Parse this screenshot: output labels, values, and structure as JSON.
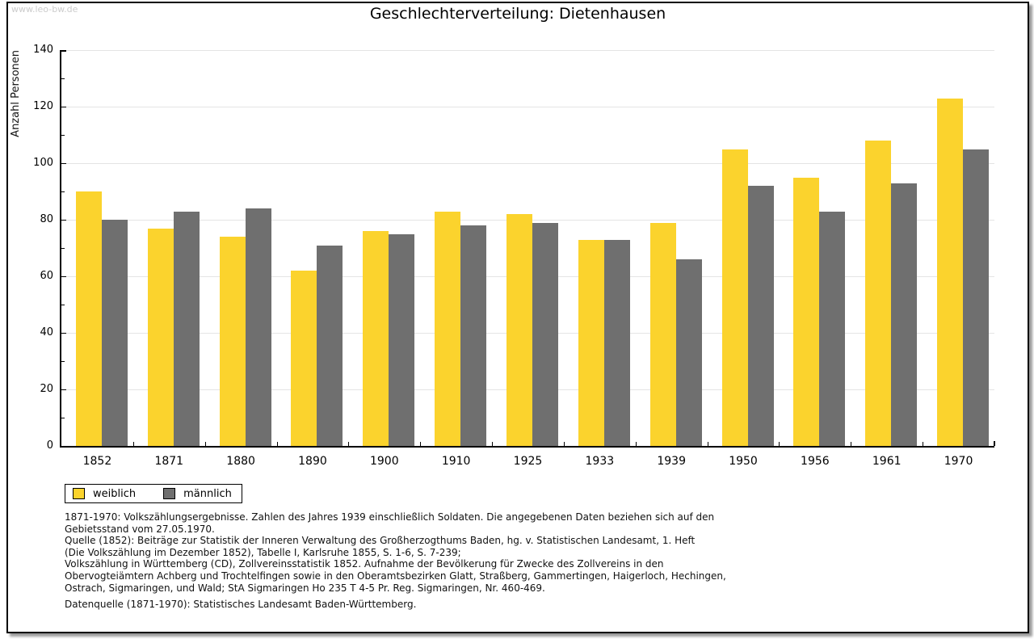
{
  "watermark": "www.leo-bw.de",
  "title": "Geschlechterverteilung: Dietenhausen",
  "chart_data": {
    "type": "bar",
    "title": "Geschlechterverteilung: Dietenhausen",
    "xlabel": "",
    "ylabel": "Anzahl Personen",
    "categories": [
      "1852",
      "1871",
      "1880",
      "1890",
      "1900",
      "1910",
      "1925",
      "1933",
      "1939",
      "1950",
      "1956",
      "1961",
      "1970"
    ],
    "series": [
      {
        "name": "weiblich",
        "color": "#FBD32D",
        "values": [
          90,
          77,
          74,
          62,
          76,
          83,
          82,
          73,
          79,
          105,
          95,
          108,
          123
        ]
      },
      {
        "name": "männlich",
        "color": "#6F6F6F",
        "values": [
          80,
          83,
          84,
          71,
          75,
          78,
          79,
          73,
          66,
          92,
          83,
          93,
          105
        ]
      }
    ],
    "ylim": [
      0,
      140
    ],
    "ytick_step": 20,
    "yminortick_step": 10,
    "grid": true,
    "gridline_color": "#e4e4e4",
    "legend_position": "bottom-left"
  },
  "footnotes": {
    "lines": [
      "1871-1970: Volkszählungsergebnisse. Zahlen des Jahres 1939 einschließlich Soldaten. Die angegebenen Daten beziehen sich auf den",
      "Gebietsstand vom 27.05.1970.",
      "Quelle (1852): Beiträge zur Statistik der Inneren Verwaltung des Großherzogthums Baden, hg. v. Statistischen Landesamt, 1. Heft",
      "(Die Volkszählung im Dezember 1852), Tabelle I, Karlsruhe 1855, S. 1-6, S. 7-239;",
      "Volkszählung in Württemberg (CD), Zollvereinsstatistik 1852. Aufnahme der Bevölkerung für Zwecke des Zollvereins in den",
      "Obervogteiämtern Achberg und Trochtelfingen sowie in den Oberamtsbezirken Glatt, Straßberg, Gammertingen, Haigerloch, Hechingen,",
      "Ostrach, Sigmaringen, und Wald; StA Sigmaringen Ho 235 T 4-5 Pr. Reg. Sigmaringen, Nr. 460-469."
    ],
    "datasource": "Datenquelle (1871-1970): Statistisches Landesamt Baden-Württemberg."
  }
}
